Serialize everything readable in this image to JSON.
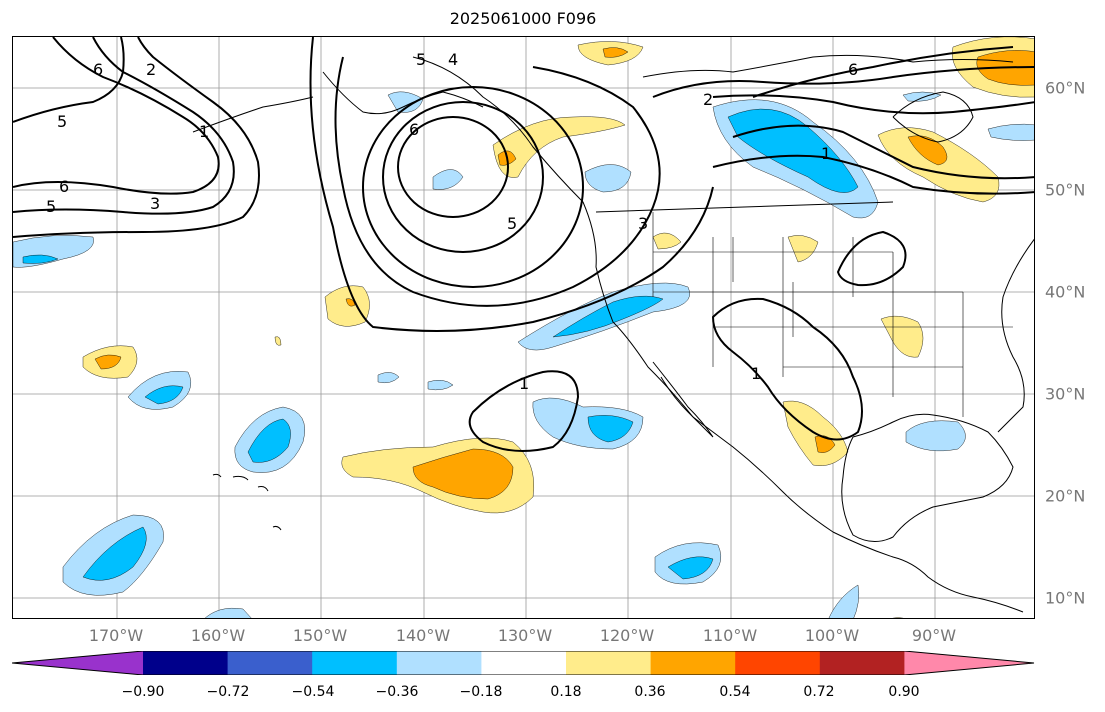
{
  "title": "2025061000 F096",
  "longitude_labels": [
    "170°W",
    "160°W",
    "150°W",
    "140°W",
    "130°W",
    "120°W",
    "110°W",
    "100°W",
    "90°W"
  ],
  "latitude_labels": [
    "60°N",
    "50°N",
    "40°N",
    "30°N",
    "20°N",
    "10°N"
  ],
  "contour_labels": [
    "6",
    "5",
    "4",
    "2",
    "5",
    "6",
    "3",
    "5",
    "6",
    "5",
    "1",
    "3",
    "1",
    "6",
    "2",
    "1",
    "1"
  ],
  "colorbar": {
    "ticks": [
      "−0.90",
      "−0.72",
      "−0.54",
      "−0.36",
      "−0.18",
      "0.18",
      "0.36",
      "0.54",
      "0.72",
      "0.90"
    ],
    "colors": [
      "#9932cc",
      "#00008b",
      "#3a5fcd",
      "#00bfff",
      "#b0e0ff",
      "#ffffff",
      "#ffec8b",
      "#ffa500",
      "#ff4500",
      "#b22222",
      "#ff88aa"
    ]
  },
  "colors": {
    "neg_strong": "#00bfff",
    "neg_weak": "#b0e0ff",
    "pos_weak": "#ffec8b",
    "pos_strong": "#ffa500",
    "pos_max": "#ff4500",
    "contour": "#000000",
    "grid": "#999999",
    "axis_label": "#777777"
  }
}
